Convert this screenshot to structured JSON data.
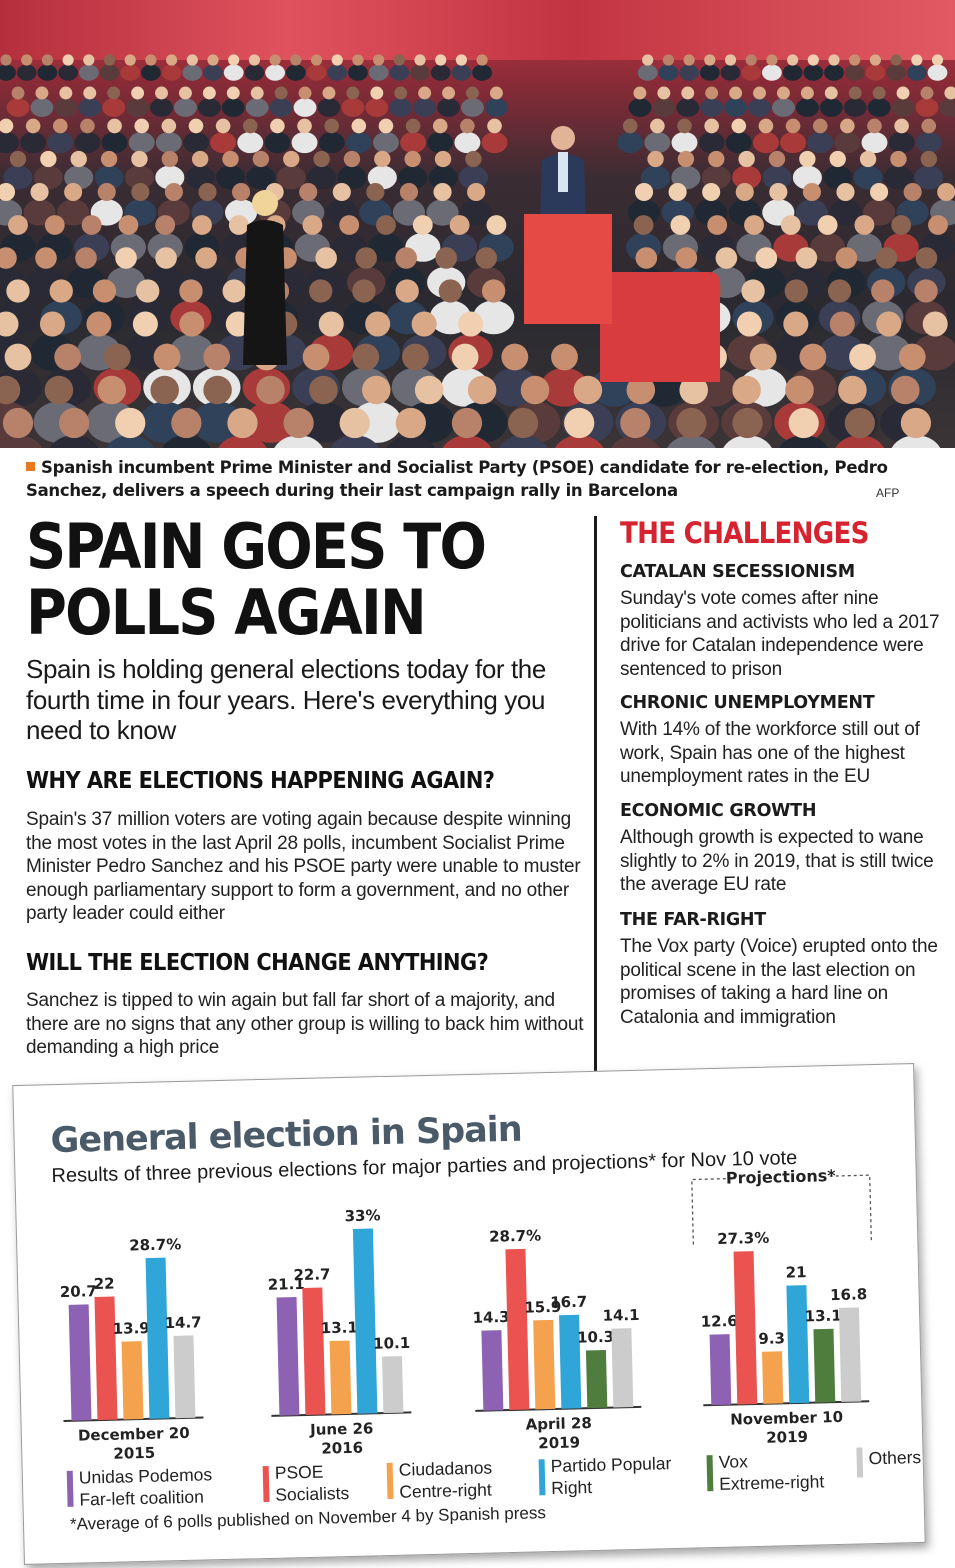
{
  "photo": {
    "caption": "Spanish incumbent Prime Minister and Socialist Party (PSOE) candidate for re-election, Pedro Sanchez, delivers a speech during their last campaign rally in Barcelona",
    "credit": "AFP"
  },
  "article": {
    "headline": "SPAIN GOES TO POLLS AGAIN",
    "intro": "Spain is holding general elections today for the fourth time in four years. Here's everything you need to know",
    "sections": [
      {
        "heading": "WHY ARE ELECTIONS HAPPENING AGAIN?",
        "body": "Spain's 37 million voters are voting again because despite winning the most votes in the last April 28 polls, incumbent Socialist Prime Minister Pedro Sanchez and his PSOE party were unable to muster enough parliamentary support to form a government, and no other party leader could either"
      },
      {
        "heading": "WILL THE ELECTION CHANGE ANYTHING?",
        "body": "Sanchez is tipped to win again but fall far short of a majority, and there are no signs that any other group is willing to back him without demanding a high price"
      }
    ]
  },
  "challenges": {
    "title": "THE CHALLENGES",
    "items": [
      {
        "heading": "CATALAN SECESSIONISM",
        "body": "Sunday's vote comes after nine politicians and activists who led a 2017 drive for Catalan independence were sentenced to prison"
      },
      {
        "heading": "CHRONIC UNEMPLOYMENT",
        "body": "With 14% of the workforce still out of work, Spain has one of the highest unemployment rates in the EU"
      },
      {
        "heading": "ECONOMIC GROWTH",
        "body": "Although growth is expected to wane slightly to 2% in 2019, that is still twice the average EU rate"
      },
      {
        "heading": "THE FAR-RIGHT",
        "body": "The Vox party (Voice) erupted onto the political scene in the last election on promises of taking a hard line on Catalonia and immigration"
      }
    ]
  },
  "chart_data": {
    "type": "bar",
    "title": "General election in Spain",
    "subtitle": "Results of three previous elections for major parties and projections* for Nov 10 vote",
    "projection_label": "Projections*",
    "footnote": "*Average of 6 polls published on November 4 by Spanish press",
    "ylim": [
      0,
      35
    ],
    "colors": {
      "Unidas Podemos": "#8e62b3",
      "PSOE": "#ea5350",
      "Ciudadanos": "#f5a24e",
      "Partido Popular": "#2fa5d8",
      "Vox": "#4f7d3e",
      "Others": "#cccccc"
    },
    "legend": [
      {
        "key": "Unidas Podemos",
        "line1": "Unidas Podemos",
        "line2": "Far-left coalition"
      },
      {
        "key": "PSOE",
        "line1": "PSOE",
        "line2": "Socialists"
      },
      {
        "key": "Ciudadanos",
        "line1": "Ciudadanos",
        "line2": "Centre-right"
      },
      {
        "key": "Partido Popular",
        "line1": "Partido Popular",
        "line2": "Right"
      },
      {
        "key": "Vox",
        "line1": "Vox",
        "line2": "Extreme-right"
      },
      {
        "key": "Others",
        "line1": "Others",
        "line2": ""
      }
    ],
    "groups": [
      {
        "label_line1": "December 20",
        "label_line2": "2015",
        "bars": [
          {
            "party": "Unidas Podemos",
            "value": 20.7,
            "label": "20.7"
          },
          {
            "party": "PSOE",
            "value": 22,
            "label": "22"
          },
          {
            "party": "Ciudadanos",
            "value": 13.9,
            "label": "13.9"
          },
          {
            "party": "Partido Popular",
            "value": 28.7,
            "label": "28.7%"
          },
          {
            "party": "Others",
            "value": 14.7,
            "label": "14.7"
          }
        ]
      },
      {
        "label_line1": "June 26",
        "label_line2": "2016",
        "bars": [
          {
            "party": "Unidas Podemos",
            "value": 21.1,
            "label": "21.1"
          },
          {
            "party": "PSOE",
            "value": 22.7,
            "label": "22.7"
          },
          {
            "party": "Ciudadanos",
            "value": 13.1,
            "label": "13.1"
          },
          {
            "party": "Partido Popular",
            "value": 33,
            "label": "33%"
          },
          {
            "party": "Others",
            "value": 10.1,
            "label": "10.1"
          }
        ]
      },
      {
        "label_line1": "April 28",
        "label_line2": "2019",
        "bars": [
          {
            "party": "Unidas Podemos",
            "value": 14.3,
            "label": "14.3"
          },
          {
            "party": "PSOE",
            "value": 28.7,
            "label": "28.7%"
          },
          {
            "party": "Ciudadanos",
            "value": 15.9,
            "label": "15.9"
          },
          {
            "party": "Partido Popular",
            "value": 16.7,
            "label": "16.7"
          },
          {
            "party": "Vox",
            "value": 10.3,
            "label": "10.3"
          },
          {
            "party": "Others",
            "value": 14.1,
            "label": "14.1"
          }
        ]
      },
      {
        "label_line1": "November 10",
        "label_line2": "2019",
        "bars": [
          {
            "party": "Unidas Podemos",
            "value": 12.6,
            "label": "12.6"
          },
          {
            "party": "PSOE",
            "value": 27.3,
            "label": "27.3%"
          },
          {
            "party": "Ciudadanos",
            "value": 9.3,
            "label": "9.3"
          },
          {
            "party": "Partido Popular",
            "value": 21,
            "label": "21"
          },
          {
            "party": "Vox",
            "value": 13.1,
            "label": "13.1"
          },
          {
            "party": "Others",
            "value": 16.8,
            "label": "16.8"
          }
        ]
      }
    ]
  }
}
